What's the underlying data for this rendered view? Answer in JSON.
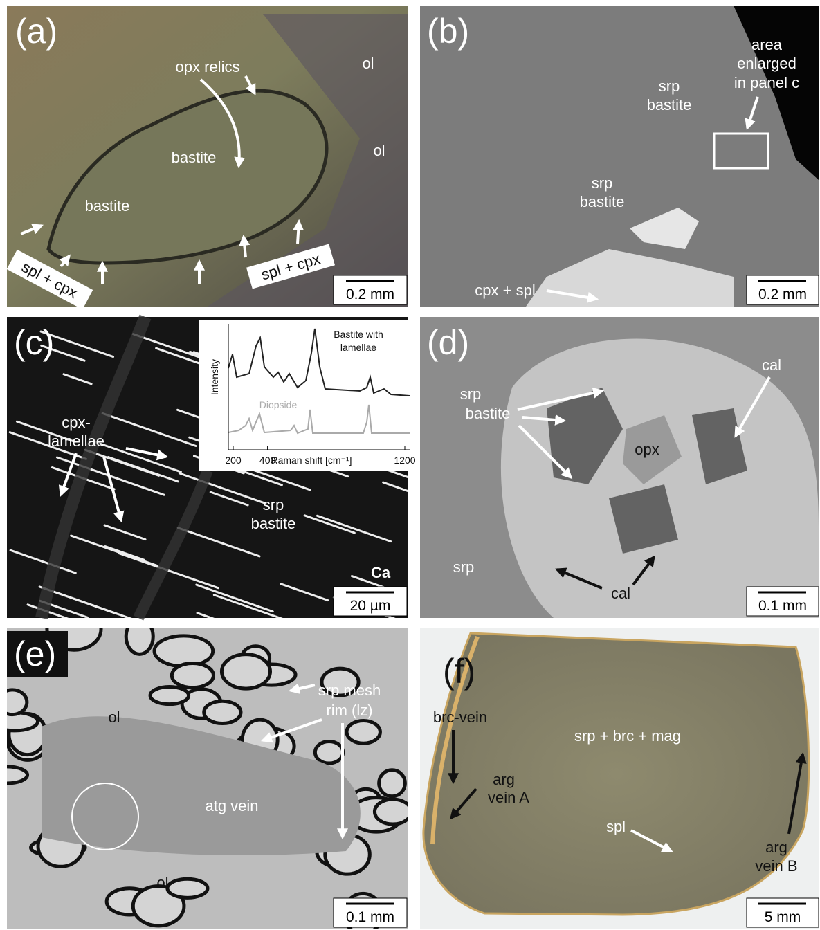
{
  "panels": [
    {
      "label": "(a)",
      "annotations": [
        [
          "opx relics"
        ],
        [
          "bastite"
        ],
        [
          "bastite"
        ],
        [
          "ol"
        ],
        [
          "ol"
        ],
        [
          "spl + cpx"
        ],
        [
          "spl + cpx"
        ]
      ],
      "scale_bar": "0.2 mm"
    },
    {
      "label": "(b)",
      "annotations": [
        [
          "area",
          "enlarged",
          "in panel c"
        ],
        [
          "srp",
          "bastite"
        ],
        [
          "srp",
          "bastite"
        ],
        [
          "cpx + spl"
        ]
      ],
      "scale_bar": "0.2 mm"
    },
    {
      "label": "(c)",
      "annotations": [
        [
          "cpx-",
          "lamellae"
        ],
        [
          "srp",
          "bastite"
        ],
        [
          "Ca"
        ]
      ],
      "scale_bar": "20 µm",
      "inset": {
        "series": [
          [
            "Bastite with",
            "lamellae"
          ],
          [
            "Diopside"
          ]
        ],
        "ylabel": "Intensity",
        "xlabel": "Raman shift [cm⁻¹]",
        "xlim": [
          200,
          1200
        ],
        "xticks": [
          200,
          400,
          1200
        ]
      }
    },
    {
      "label": "(d)",
      "annotations": [
        [
          "srp",
          "bastite"
        ],
        [
          "cal"
        ],
        [
          "opx"
        ],
        [
          "srp"
        ],
        [
          "cal"
        ]
      ],
      "scale_bar": "0.1 mm"
    },
    {
      "label": "(e)",
      "annotations": [
        [
          "ol"
        ],
        [
          "srp mesh",
          "rim (lz)"
        ],
        [
          "atg vein"
        ],
        [
          "ol"
        ]
      ],
      "scale_bar": "0.1 mm"
    },
    {
      "label": "(f)",
      "annotations": [
        [
          "brc-vein"
        ],
        [
          "arg",
          "vein A"
        ],
        [
          "srp + brc + mag"
        ],
        [
          "spl"
        ],
        [
          "arg",
          "vein B"
        ]
      ],
      "scale_bar": "5 mm"
    }
  ]
}
